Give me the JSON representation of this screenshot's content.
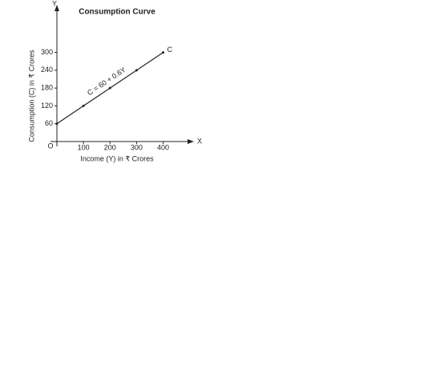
{
  "chart_data": {
    "type": "line",
    "title": "Consumption Curve",
    "x_label": "Income (Y) in ₹ Crores",
    "y_label": "Consumption (C) in ₹ Crores",
    "x_axis_name": "X",
    "y_axis_name": "Y",
    "origin_label": "O",
    "annotation": "C = 60 + 0.6Y",
    "x": [
      0,
      100,
      200,
      300,
      400
    ],
    "series": [
      {
        "name": "C",
        "color": "#222222",
        "values": [
          60,
          120,
          180,
          240,
          300
        ]
      }
    ],
    "xlim": [
      0,
      510
    ],
    "ylim": [
      0,
      455
    ],
    "xticks": [
      100,
      200,
      300,
      400
    ],
    "yticks": [
      60,
      120,
      180,
      240,
      300
    ]
  }
}
